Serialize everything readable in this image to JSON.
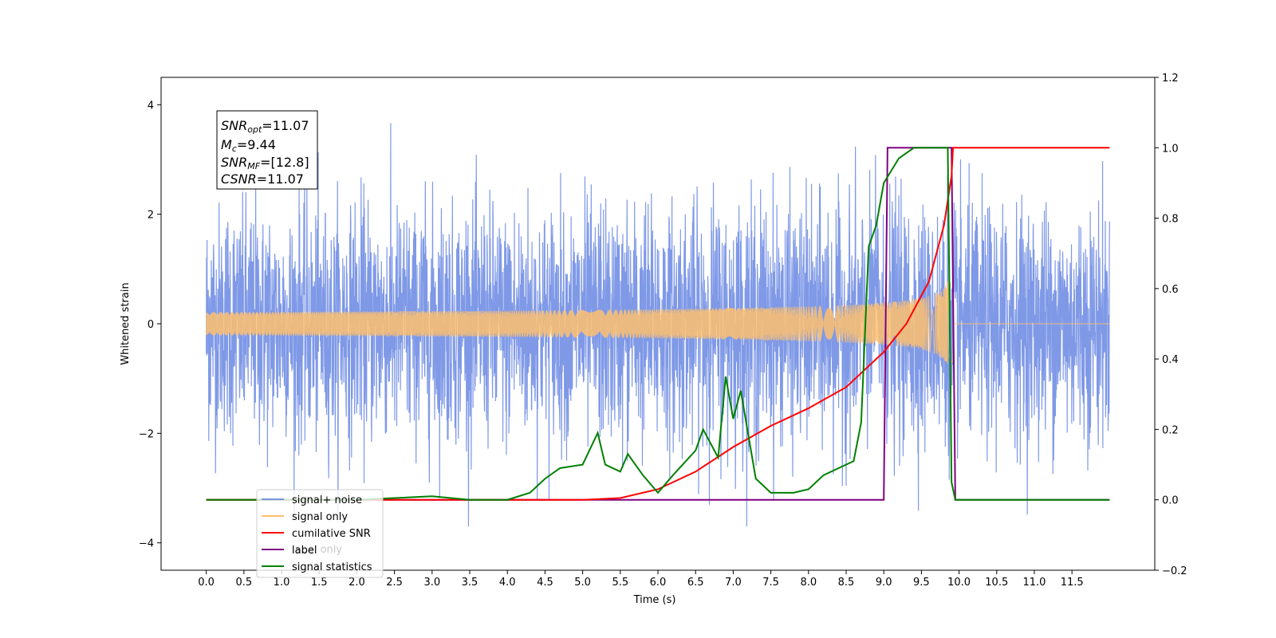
{
  "chart_data": {
    "type": "line",
    "xlabel": "Time (s)",
    "ylabel_left": "Whitened strain",
    "ylabel_right": "",
    "xlim": [
      -0.6,
      12.6
    ],
    "ylim_left": [
      -4.5,
      4.5
    ],
    "ylim_right": [
      -0.2,
      1.2
    ],
    "x_ticks": [
      "0.0",
      "0.5",
      "1.0",
      "1.5",
      "2.0",
      "2.5",
      "3.0",
      "3.5",
      "4.0",
      "4.5",
      "5.0",
      "5.5",
      "6.0",
      "6.5",
      "7.0",
      "7.5",
      "8.0",
      "8.5",
      "9.0",
      "9.5",
      "10.0",
      "10.5",
      "11.0",
      "11.5"
    ],
    "y_ticks_left": [
      "4",
      "2",
      "0",
      "−2",
      "−4"
    ],
    "y_ticks_right": [
      "1.2",
      "1.0",
      "0.8",
      "0.6",
      "0.4",
      "0.2",
      "0.0",
      "−0.2"
    ],
    "grid": false,
    "legend_position": "lower-left",
    "colors": {
      "signal_noise": "#7894e6",
      "signal_only": "#fdbf6f",
      "cumulative_snr": "#ff0000",
      "label": "#800080",
      "signal_statistics": "#008000"
    },
    "series": [
      {
        "name": "signal+ noise",
        "axis": "left",
        "description_values": "random whitened noise, std ~1, range ~[-3.7, 4.1]",
        "x_range": [
          0.0,
          12.0
        ]
      },
      {
        "name": "signal only",
        "axis": "left",
        "chirp": {
          "x_start": 0.0,
          "x_merger": 9.9,
          "amp_max": 1.0
        },
        "x_range": [
          0.0,
          12.0
        ]
      },
      {
        "name": "cumilative SNR",
        "axis": "right",
        "x": [
          0.0,
          5.0,
          5.5,
          6.0,
          6.5,
          7.0,
          7.5,
          8.0,
          8.5,
          9.0,
          9.3,
          9.6,
          9.8,
          9.9,
          9.92,
          12.0
        ],
        "values": [
          0.0,
          0.0,
          0.005,
          0.03,
          0.08,
          0.15,
          0.21,
          0.26,
          0.32,
          0.42,
          0.5,
          0.62,
          0.78,
          0.92,
          1.0,
          1.0
        ]
      },
      {
        "name": "label",
        "axis": "right",
        "x": [
          0.0,
          9.0,
          9.05,
          9.9,
          9.95,
          12.0
        ],
        "values": [
          0.0,
          0.0,
          1.0,
          1.0,
          0.0,
          0.0
        ]
      },
      {
        "name": "signal statistics",
        "axis": "right",
        "x": [
          0.0,
          2.0,
          2.5,
          3.0,
          3.5,
          4.0,
          4.3,
          4.5,
          4.7,
          5.0,
          5.2,
          5.3,
          5.5,
          5.6,
          5.8,
          6.0,
          6.2,
          6.5,
          6.6,
          6.8,
          6.9,
          7.0,
          7.1,
          7.3,
          7.5,
          7.8,
          8.0,
          8.2,
          8.4,
          8.6,
          8.7,
          8.8,
          8.9,
          9.0,
          9.2,
          9.4,
          9.6,
          9.85,
          9.9,
          9.95,
          12.0
        ],
        "values": [
          0.0,
          0.0,
          0.005,
          0.01,
          0.0,
          0.0,
          0.02,
          0.06,
          0.09,
          0.1,
          0.19,
          0.1,
          0.08,
          0.13,
          0.07,
          0.02,
          0.07,
          0.14,
          0.2,
          0.12,
          0.35,
          0.23,
          0.31,
          0.06,
          0.02,
          0.02,
          0.03,
          0.07,
          0.09,
          0.11,
          0.22,
          0.72,
          0.78,
          0.9,
          0.97,
          1.0,
          1.0,
          1.0,
          0.05,
          0.0,
          0.0
        ]
      }
    ],
    "legend": [
      "signal+ noise",
      "signal only",
      "cumilative SNR",
      "label",
      "signal statistics"
    ],
    "annotation": {
      "line1_main": "SNR",
      "line1_sub": "opt",
      "line1_rest": "=11.07",
      "line2_main": "M",
      "line2_sub": "c",
      "line2_rest": "=9.44",
      "line3_main": "SNR",
      "line3_sub": "MF",
      "line3_rest": "=[12.8]",
      "line4_main": "CSNR",
      "line4_rest": "=11.07"
    },
    "occluded_legend_text": "label only"
  }
}
